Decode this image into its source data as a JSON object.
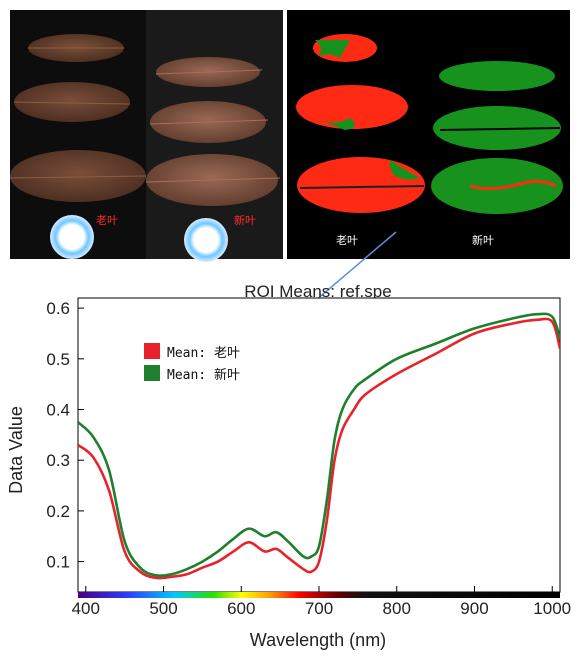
{
  "photo_panel": {
    "label_old": "老叶",
    "label_new": "新叶"
  },
  "classified_panel": {
    "label_old": "老叶",
    "label_new": "新叶",
    "colors": {
      "old": "#ff2a14",
      "new": "#17931d",
      "background": "#000000"
    }
  },
  "chart_data": {
    "type": "line",
    "title": "ROI Means: ref.spe",
    "xlabel": "Wavelength (nm)",
    "ylabel": "Data Value",
    "xlim": [
      390,
      1010
    ],
    "ylim": [
      0.04,
      0.62
    ],
    "xticks": [
      400,
      500,
      600,
      700,
      800,
      900,
      1000
    ],
    "yticks": [
      0.1,
      0.2,
      0.3,
      0.4,
      0.5,
      0.6
    ],
    "grid": false,
    "legend_position": "top-left",
    "wavelength_color_bar": true,
    "series": [
      {
        "name": "Mean: 老叶",
        "color": "#e8222a",
        "x": [
          390,
          410,
          430,
          450,
          470,
          490,
          510,
          530,
          550,
          570,
          590,
          610,
          630,
          645,
          660,
          680,
          690,
          700,
          710,
          720,
          730,
          745,
          760,
          800,
          850,
          900,
          950,
          980,
          1000,
          1010
        ],
        "y": [
          0.33,
          0.305,
          0.24,
          0.12,
          0.08,
          0.068,
          0.07,
          0.075,
          0.088,
          0.1,
          0.12,
          0.138,
          0.12,
          0.125,
          0.108,
          0.085,
          0.08,
          0.1,
          0.18,
          0.3,
          0.36,
          0.4,
          0.43,
          0.47,
          0.51,
          0.55,
          0.57,
          0.577,
          0.573,
          0.52
        ]
      },
      {
        "name": "Mean: 新叶",
        "color": "#1e7f2c",
        "x": [
          390,
          410,
          430,
          450,
          470,
          490,
          510,
          530,
          550,
          570,
          590,
          610,
          630,
          645,
          660,
          680,
          690,
          700,
          710,
          720,
          730,
          745,
          760,
          800,
          850,
          900,
          950,
          980,
          1000,
          1010
        ],
        "y": [
          0.375,
          0.345,
          0.28,
          0.14,
          0.088,
          0.073,
          0.075,
          0.085,
          0.1,
          0.12,
          0.145,
          0.165,
          0.15,
          0.158,
          0.14,
          0.11,
          0.11,
          0.13,
          0.22,
          0.34,
          0.4,
          0.44,
          0.46,
          0.5,
          0.53,
          0.56,
          0.58,
          0.588,
          0.583,
          0.54
        ]
      }
    ]
  }
}
